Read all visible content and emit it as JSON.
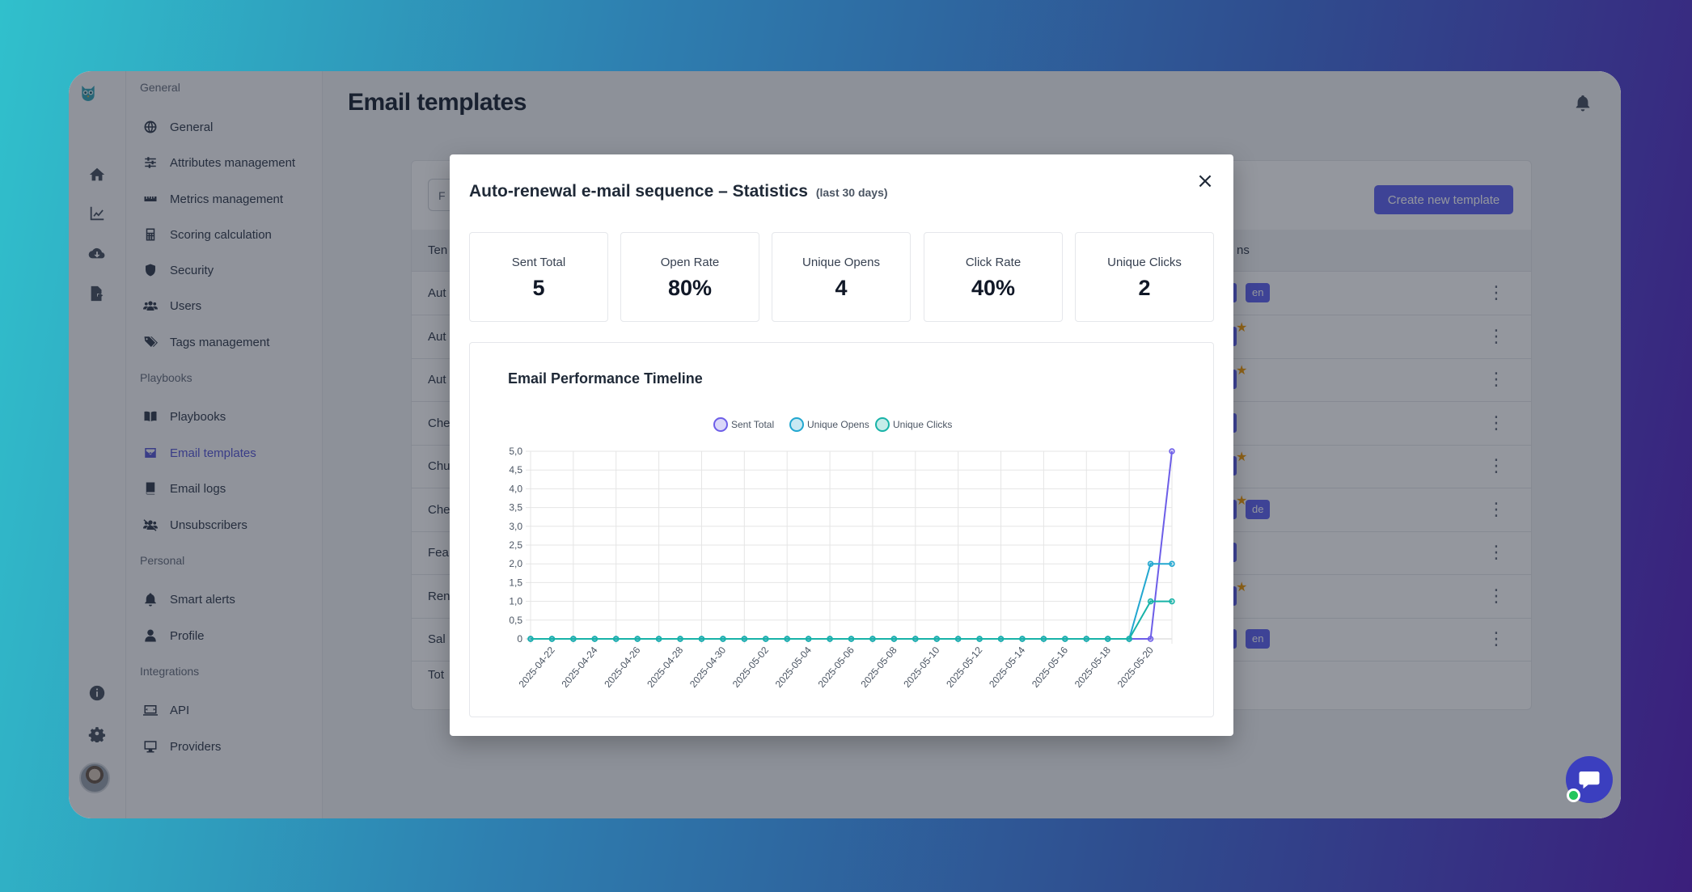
{
  "page": {
    "title": "Email templates"
  },
  "sidebar": {
    "sections": [
      {
        "title": "General",
        "items": [
          {
            "label": "General",
            "icon": "globe-icon"
          },
          {
            "label": "Attributes management",
            "icon": "sliders-icon"
          },
          {
            "label": "Metrics management",
            "icon": "ruler-icon"
          },
          {
            "label": "Scoring calculation",
            "icon": "calculator-icon"
          },
          {
            "label": "Security",
            "icon": "shield-icon"
          },
          {
            "label": "Users",
            "icon": "users-icon"
          },
          {
            "label": "Tags management",
            "icon": "tags-icon"
          }
        ]
      },
      {
        "title": "Playbooks",
        "items": [
          {
            "label": "Playbooks",
            "icon": "book-open-icon"
          },
          {
            "label": "Email templates",
            "icon": "email-template-icon",
            "active": true
          },
          {
            "label": "Email logs",
            "icon": "book-icon"
          },
          {
            "label": "Unsubscribers",
            "icon": "users-slash-icon"
          }
        ]
      },
      {
        "title": "Personal",
        "items": [
          {
            "label": "Smart alerts",
            "icon": "bell-icon"
          },
          {
            "label": "Profile",
            "icon": "user-icon"
          }
        ]
      },
      {
        "title": "Integrations",
        "items": [
          {
            "label": "API",
            "icon": "api-icon"
          },
          {
            "label": "Providers",
            "icon": "monitor-icon"
          }
        ]
      }
    ]
  },
  "table": {
    "filter_placeholder": "F",
    "create_button": "Create new template",
    "col_name": "Ten",
    "col_languages": "ns",
    "rows": [
      {
        "name": "Aut",
        "langs": [
          "en"
        ],
        "star": false
      },
      {
        "name": "Aut",
        "langs": [],
        "star": true
      },
      {
        "name": "Aut",
        "langs": [],
        "star": true
      },
      {
        "name": "Che",
        "langs": [],
        "star": false
      },
      {
        "name": "Chu",
        "langs": [],
        "star": true
      },
      {
        "name": "Che",
        "langs": [
          "de"
        ],
        "star": true
      },
      {
        "name": "Fea",
        "langs": [],
        "star": false
      },
      {
        "name": "Ren",
        "langs": [],
        "star": true
      },
      {
        "name": "Sal",
        "langs": [
          "en"
        ],
        "star": false
      }
    ],
    "footer": "Tot"
  },
  "modal": {
    "title": "Auto-renewal e-mail sequence – Statistics",
    "subtitle": "(last 30 days)",
    "close_label": "×",
    "stats": [
      {
        "label": "Sent Total",
        "value": "5"
      },
      {
        "label": "Open Rate",
        "value": "80%"
      },
      {
        "label": "Unique Opens",
        "value": "4"
      },
      {
        "label": "Click Rate",
        "value": "40%"
      },
      {
        "label": "Unique Clicks",
        "value": "2"
      }
    ]
  },
  "chart_data": {
    "type": "line",
    "title": "Email Performance Timeline",
    "ylim": [
      0,
      5
    ],
    "yticks": [
      "0",
      "0,5",
      "1,0",
      "1,5",
      "2,0",
      "2,5",
      "3,0",
      "3,5",
      "4,0",
      "4,5",
      "5,0"
    ],
    "x": [
      "2025-04-21",
      "2025-04-22",
      "2025-04-23",
      "2025-04-24",
      "2025-04-25",
      "2025-04-26",
      "2025-04-27",
      "2025-04-28",
      "2025-04-29",
      "2025-04-30",
      "2025-05-01",
      "2025-05-02",
      "2025-05-03",
      "2025-05-04",
      "2025-05-05",
      "2025-05-06",
      "2025-05-07",
      "2025-05-08",
      "2025-05-09",
      "2025-05-10",
      "2025-05-11",
      "2025-05-12",
      "2025-05-13",
      "2025-05-14",
      "2025-05-15",
      "2025-05-16",
      "2025-05-17",
      "2025-05-18",
      "2025-05-19",
      "2025-05-20",
      "2025-05-21"
    ],
    "xtick_labels": [
      "2025-04-22",
      "2025-04-24",
      "2025-04-26",
      "2025-04-28",
      "2025-04-30",
      "2025-05-02",
      "2025-05-04",
      "2025-05-06",
      "2025-05-08",
      "2025-05-10",
      "2025-05-12",
      "2025-05-14",
      "2025-05-16",
      "2025-05-18",
      "2025-05-20"
    ],
    "legend_position": "top",
    "grid": true,
    "series": [
      {
        "name": "Sent Total",
        "color": "#6d5ee8",
        "values": [
          0,
          0,
          0,
          0,
          0,
          0,
          0,
          0,
          0,
          0,
          0,
          0,
          0,
          0,
          0,
          0,
          0,
          0,
          0,
          0,
          0,
          0,
          0,
          0,
          0,
          0,
          0,
          0,
          0,
          0,
          5
        ]
      },
      {
        "name": "Unique Opens",
        "color": "#22a7d0",
        "values": [
          0,
          0,
          0,
          0,
          0,
          0,
          0,
          0,
          0,
          0,
          0,
          0,
          0,
          0,
          0,
          0,
          0,
          0,
          0,
          0,
          0,
          0,
          0,
          0,
          0,
          0,
          0,
          0,
          0,
          2,
          2
        ]
      },
      {
        "name": "Unique Clicks",
        "color": "#18b3a8",
        "values": [
          0,
          0,
          0,
          0,
          0,
          0,
          0,
          0,
          0,
          0,
          0,
          0,
          0,
          0,
          0,
          0,
          0,
          0,
          0,
          0,
          0,
          0,
          0,
          0,
          0,
          0,
          0,
          0,
          0,
          1,
          1
        ]
      }
    ]
  },
  "colors": {
    "accent": "#6366f1",
    "chat": "#3b3fbf",
    "online": "#22c55e"
  }
}
